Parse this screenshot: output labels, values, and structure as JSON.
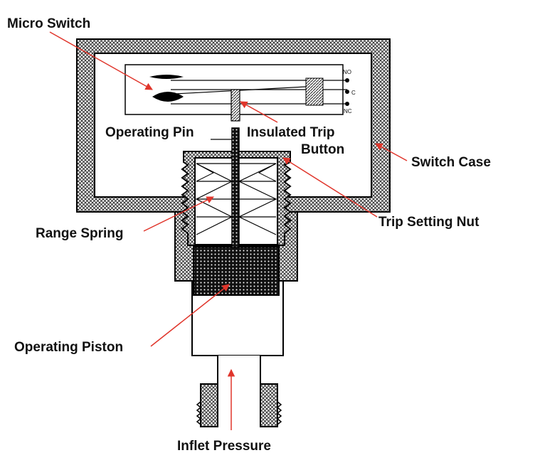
{
  "labels": {
    "micro_switch": "Micro Switch",
    "operating_pin": "Operating Pin",
    "insulated_trip_button_1": "Insulated Trip",
    "insulated_trip_button_2": "Button",
    "switch_case": "Switch Case",
    "trip_setting_nut": "Trip Setting Nut",
    "range_spring": "Range Spring",
    "operating_piston": "Operating Piston",
    "inflet_pressure": "Inflet Pressure"
  },
  "terminals": {
    "no": "NO",
    "c": "C",
    "nc": "NC"
  },
  "colors": {
    "arrow": "#e0352b",
    "hatch": "#555555",
    "outline": "#000000"
  }
}
